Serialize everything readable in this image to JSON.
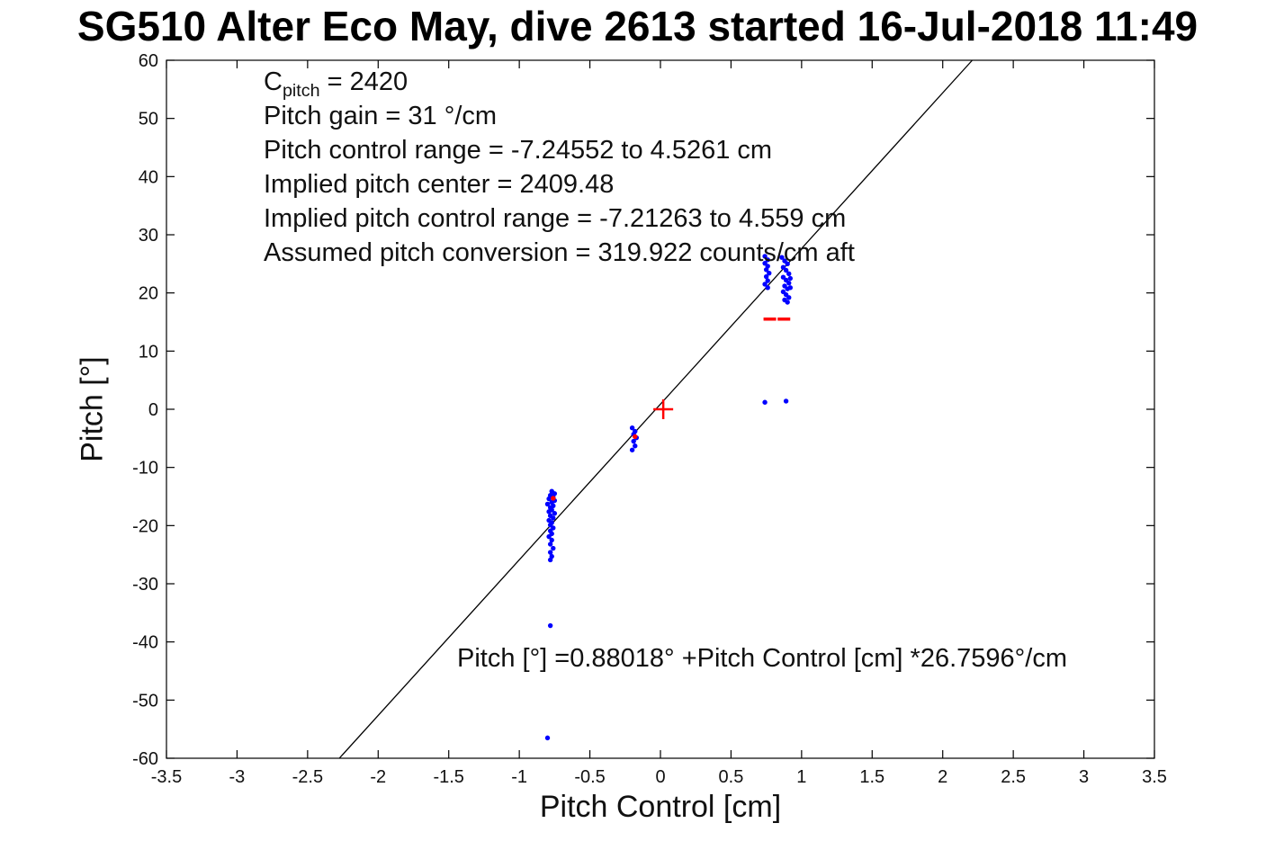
{
  "chart_data": {
    "type": "scatter",
    "title": "SG510 Alter Eco May, dive 2613 started 16-Jul-2018 11:49",
    "xlabel": "Pitch Control [cm]",
    "ylabel": "Pitch [°]",
    "xlim": [
      -3.5,
      3.5
    ],
    "ylim": [
      -60,
      60
    ],
    "xticks": [
      -3.5,
      -3,
      -2.5,
      -2,
      -1.5,
      -1,
      -0.5,
      0,
      0.5,
      1,
      1.5,
      2,
      2.5,
      3,
      3.5
    ],
    "yticks": [
      -60,
      -50,
      -40,
      -30,
      -20,
      -10,
      0,
      10,
      20,
      30,
      40,
      50,
      60
    ],
    "grid": false,
    "legend": "none",
    "colors": {
      "points": "#0000ff",
      "highlights": "#ff0000",
      "fit_line": "#000000"
    },
    "fit_line": {
      "intercept": 0.88018,
      "slope": 26.7596
    },
    "info_block": {
      "line1_main": "C",
      "line1_sub": "pitch",
      "line1_rest": " = 2420",
      "lines": [
        "Pitch gain = 31 °/cm",
        "Pitch control range = -7.24552 to 4.5261 cm",
        "Implied pitch center = 2409.48",
        "Implied pitch control range = -7.21263 to 4.559 cm",
        "Assumed pitch conversion = 319.922 counts/cm aft"
      ]
    },
    "fit_label": "Pitch [°] =0.88018° +Pitch Control [cm] *26.7596°/cm",
    "series": [
      {
        "name": "pitch-observations",
        "marker": "dot",
        "color": "#0000ff",
        "points": [
          [
            -0.77,
            -14.1
          ],
          [
            -0.75,
            -14.5
          ],
          [
            -0.78,
            -14.8
          ],
          [
            -0.76,
            -15.1
          ],
          [
            -0.79,
            -15.4
          ],
          [
            -0.75,
            -15.7
          ],
          [
            -0.77,
            -16.0
          ],
          [
            -0.8,
            -16.3
          ],
          [
            -0.76,
            -16.6
          ],
          [
            -0.78,
            -16.9
          ],
          [
            -0.77,
            -17.3
          ],
          [
            -0.79,
            -17.6
          ],
          [
            -0.75,
            -17.9
          ],
          [
            -0.78,
            -18.3
          ],
          [
            -0.76,
            -18.7
          ],
          [
            -0.79,
            -19.1
          ],
          [
            -0.77,
            -19.5
          ],
          [
            -0.78,
            -19.9
          ],
          [
            -0.76,
            -20.4
          ],
          [
            -0.78,
            -20.9
          ],
          [
            -0.77,
            -21.4
          ],
          [
            -0.79,
            -21.9
          ],
          [
            -0.77,
            -22.5
          ],
          [
            -0.78,
            -23.2
          ],
          [
            -0.76,
            -23.9
          ],
          [
            -0.78,
            -24.6
          ],
          [
            -0.77,
            -25.3
          ],
          [
            -0.78,
            -25.9
          ],
          [
            -0.2,
            -3.2
          ],
          [
            -0.18,
            -3.8
          ],
          [
            -0.19,
            -4.3
          ],
          [
            -0.17,
            -4.9
          ],
          [
            -0.19,
            -5.5
          ],
          [
            -0.18,
            -6.3
          ],
          [
            -0.2,
            -7.0
          ],
          [
            0.74,
            26.3
          ],
          [
            0.76,
            25.7
          ],
          [
            0.74,
            25.1
          ],
          [
            0.76,
            24.6
          ],
          [
            0.75,
            24.0
          ],
          [
            0.77,
            23.4
          ],
          [
            0.75,
            22.8
          ],
          [
            0.76,
            22.1
          ],
          [
            0.74,
            21.5
          ],
          [
            0.76,
            20.9
          ],
          [
            0.86,
            26.1
          ],
          [
            0.88,
            25.5
          ],
          [
            0.9,
            25.0
          ],
          [
            0.87,
            24.4
          ],
          [
            0.89,
            23.9
          ],
          [
            0.91,
            23.3
          ],
          [
            0.87,
            22.7
          ],
          [
            0.89,
            22.2
          ],
          [
            0.91,
            21.7
          ],
          [
            0.88,
            21.2
          ],
          [
            0.9,
            20.7
          ],
          [
            0.87,
            20.2
          ],
          [
            0.89,
            19.7
          ],
          [
            0.91,
            19.2
          ],
          [
            0.88,
            18.8
          ],
          [
            0.9,
            18.4
          ],
          [
            0.92,
            20.9
          ],
          [
            0.92,
            22.5
          ],
          [
            0.74,
            1.2
          ],
          [
            0.89,
            1.4
          ],
          [
            -0.78,
            -37.2
          ],
          [
            -0.8,
            -56.5
          ]
        ]
      },
      {
        "name": "highlight-dots",
        "marker": "dot",
        "color": "#ff0000",
        "points": [
          [
            -0.76,
            -15.3
          ],
          [
            -0.18,
            -4.7
          ]
        ]
      },
      {
        "name": "highlight-dashes",
        "marker": "dash",
        "color": "#ff0000",
        "points": [
          [
            0.775,
            15.5
          ],
          [
            0.875,
            15.5
          ]
        ]
      },
      {
        "name": "implied-center-marker",
        "marker": "plus",
        "color": "#ff0000",
        "points": [
          [
            0.02,
            0.0
          ]
        ]
      }
    ]
  }
}
